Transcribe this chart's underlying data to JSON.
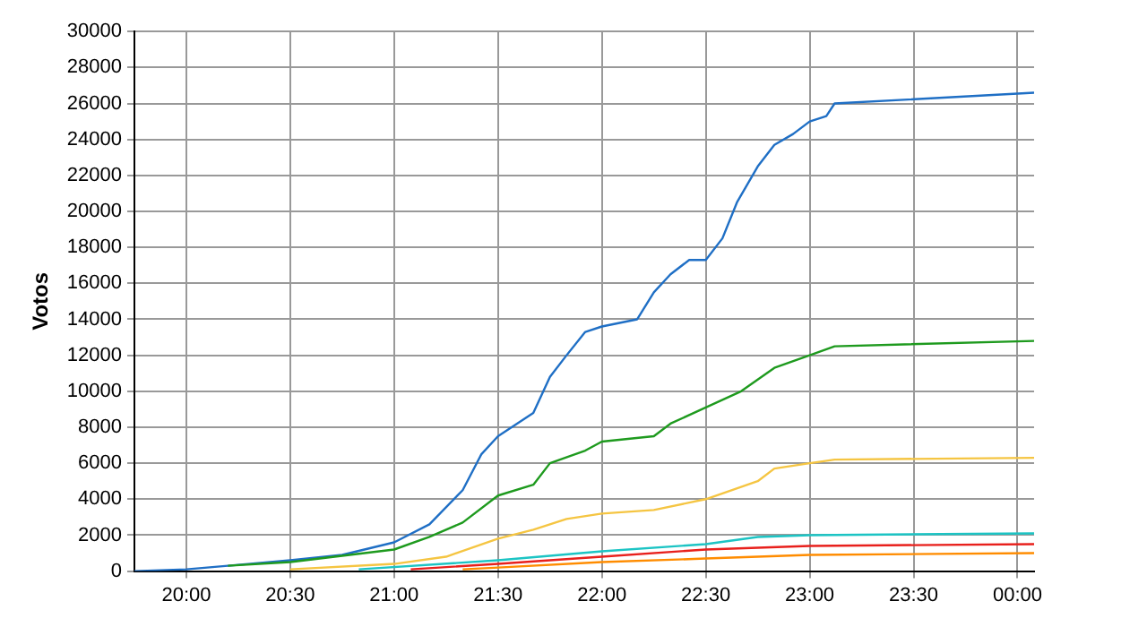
{
  "chart_data": {
    "type": "line",
    "ylabel": "Votos",
    "xlim": [
      19.75,
      24.08
    ],
    "xticks": [
      {
        "value": 20,
        "label": "20:00"
      },
      {
        "value": 20.5,
        "label": "20:30"
      },
      {
        "value": 21,
        "label": "21:00"
      },
      {
        "value": 21.5,
        "label": "21:30"
      },
      {
        "value": 22,
        "label": "22:00"
      },
      {
        "value": 22.5,
        "label": "22:30"
      },
      {
        "value": 23,
        "label": "23:00"
      },
      {
        "value": 23.5,
        "label": "23:30"
      },
      {
        "value": 24,
        "label": "00:00"
      }
    ],
    "ylim": [
      0,
      30000
    ],
    "yticks": [
      0,
      2000,
      4000,
      6000,
      8000,
      10000,
      12000,
      14000,
      16000,
      18000,
      20000,
      22000,
      24000,
      26000,
      28000,
      30000
    ],
    "grid": true,
    "legend": false,
    "marker": "none",
    "line_style": "solid",
    "series": [
      {
        "color": "#1f6fc5",
        "x": [
          19.75,
          20,
          20.2,
          20.5,
          20.75,
          21,
          21.17,
          21.33,
          21.42,
          21.5,
          21.67,
          21.75,
          21.83,
          21.92,
          22,
          22.17,
          22.25,
          22.33,
          22.42,
          22.5,
          22.58,
          22.65,
          22.75,
          22.83,
          22.92,
          23,
          23.08,
          23.12,
          24.08
        ],
        "values": [
          0,
          100,
          300,
          600,
          900,
          1600,
          2600,
          4500,
          6500,
          7500,
          8800,
          10800,
          12000,
          13300,
          13600,
          14000,
          15500,
          16500,
          17300,
          17300,
          18500,
          20500,
          22500,
          23700,
          24300,
          25000,
          25300,
          26000,
          26600
        ]
      },
      {
        "color": "#1e9a1e",
        "x": [
          20.2,
          20.5,
          21,
          21.17,
          21.33,
          21.5,
          21.67,
          21.75,
          21.92,
          22,
          22.25,
          22.33,
          22.5,
          22.67,
          22.83,
          23,
          23.12,
          24.08
        ],
        "values": [
          300,
          500,
          1200,
          1900,
          2700,
          4200,
          4800,
          6000,
          6700,
          7200,
          7500,
          8200,
          9100,
          10000,
          11300,
          12000,
          12500,
          12800
        ]
      },
      {
        "color": "#f5c542",
        "x": [
          20.5,
          21,
          21.25,
          21.5,
          21.67,
          21.83,
          22,
          22.25,
          22.5,
          22.75,
          22.83,
          23,
          23.12,
          24.08
        ],
        "values": [
          100,
          400,
          800,
          1800,
          2300,
          2900,
          3200,
          3400,
          4000,
          5000,
          5700,
          6000,
          6200,
          6300
        ]
      },
      {
        "color": "#1cc4c4",
        "x": [
          20.83,
          21.5,
          22,
          22.5,
          22.75,
          23,
          24.08
        ],
        "values": [
          100,
          600,
          1100,
          1500,
          1900,
          2000,
          2100
        ]
      },
      {
        "color": "#e8201c",
        "x": [
          21.08,
          21.5,
          22,
          22.5,
          23,
          24.08
        ],
        "values": [
          100,
          400,
          800,
          1200,
          1400,
          1500
        ]
      },
      {
        "color": "#ff8c00",
        "x": [
          21.33,
          21.5,
          22,
          22.5,
          23,
          24.08
        ],
        "values": [
          100,
          200,
          500,
          700,
          900,
          1000
        ]
      }
    ]
  }
}
